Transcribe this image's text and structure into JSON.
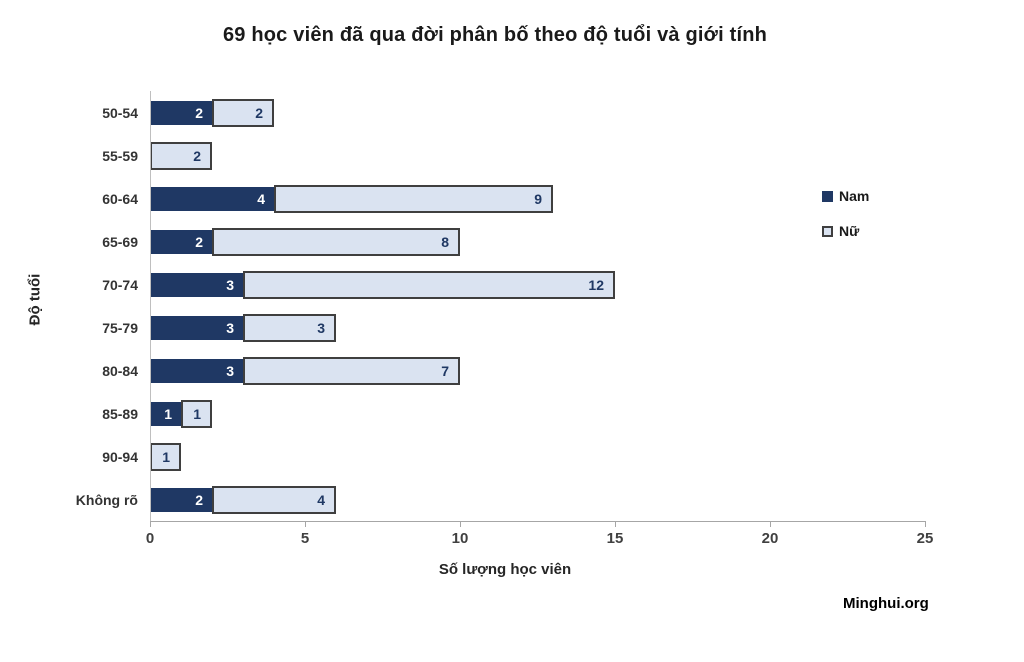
{
  "title": "69 học viên đã qua đời phân bố theo độ tuổi và giới tính",
  "source": "Minghui.org",
  "chart_data": {
    "type": "bar",
    "orientation": "horizontal",
    "stacked": true,
    "title": "69 học viên đã qua đời phân bố theo độ tuổi và giới tính",
    "categories": [
      "50-54",
      "55-59",
      "60-64",
      "65-69",
      "70-74",
      "75-79",
      "80-84",
      "85-89",
      "90-94",
      "Không rõ"
    ],
    "series": [
      {
        "name": "Nam",
        "values": [
          2,
          0,
          4,
          2,
          3,
          3,
          3,
          1,
          0,
          2
        ],
        "color": "#1F3864",
        "label_color": "#FFFFFF"
      },
      {
        "name": "Nữ",
        "values": [
          2,
          2,
          9,
          8,
          12,
          3,
          7,
          1,
          1,
          4
        ],
        "color": "#DAE3F1",
        "border_color": "#3F3F3F",
        "label_color": "#1F3864"
      }
    ],
    "totals_note": "69",
    "xlabel": "Số lượng học viên",
    "ylabel": "Độ tuổi",
    "xlim": [
      0,
      25
    ],
    "xticks": [
      0,
      5,
      10,
      15,
      20,
      25
    ],
    "grid": false,
    "legend_position": "right",
    "data_labels": "inside-end"
  }
}
